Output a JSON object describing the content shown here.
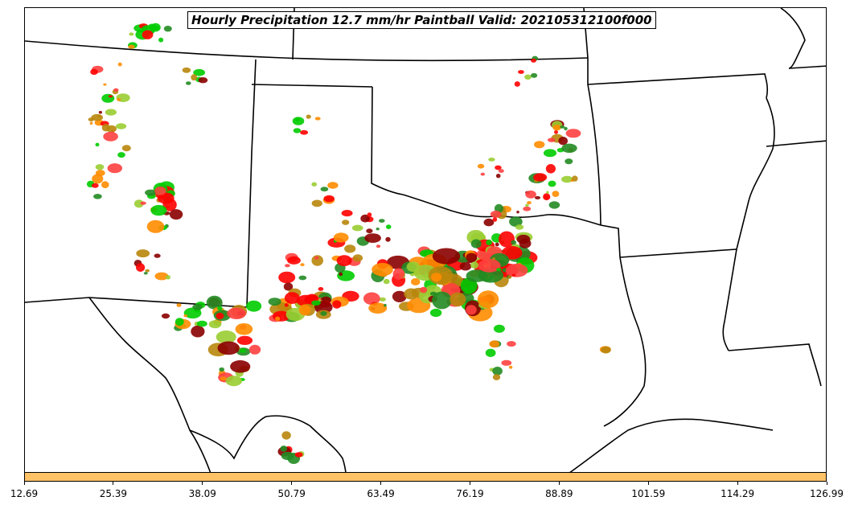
{
  "title": "Hourly Precipitation 12.7 mm/hr Paintball Valid: 202105312100f000",
  "colorbar": {
    "color": "#ffc266",
    "ticks": [
      "12.69",
      "25.39",
      "38.09",
      "50.79",
      "63.49",
      "76.19",
      "88.89",
      "101.59",
      "114.29",
      "126.99"
    ]
  },
  "paintball_colors": [
    "#ff8c00",
    "#ff0000",
    "#8b0000",
    "#00cc00",
    "#228b22",
    "#9acd32",
    "#ff4040",
    "#b8860b"
  ]
}
